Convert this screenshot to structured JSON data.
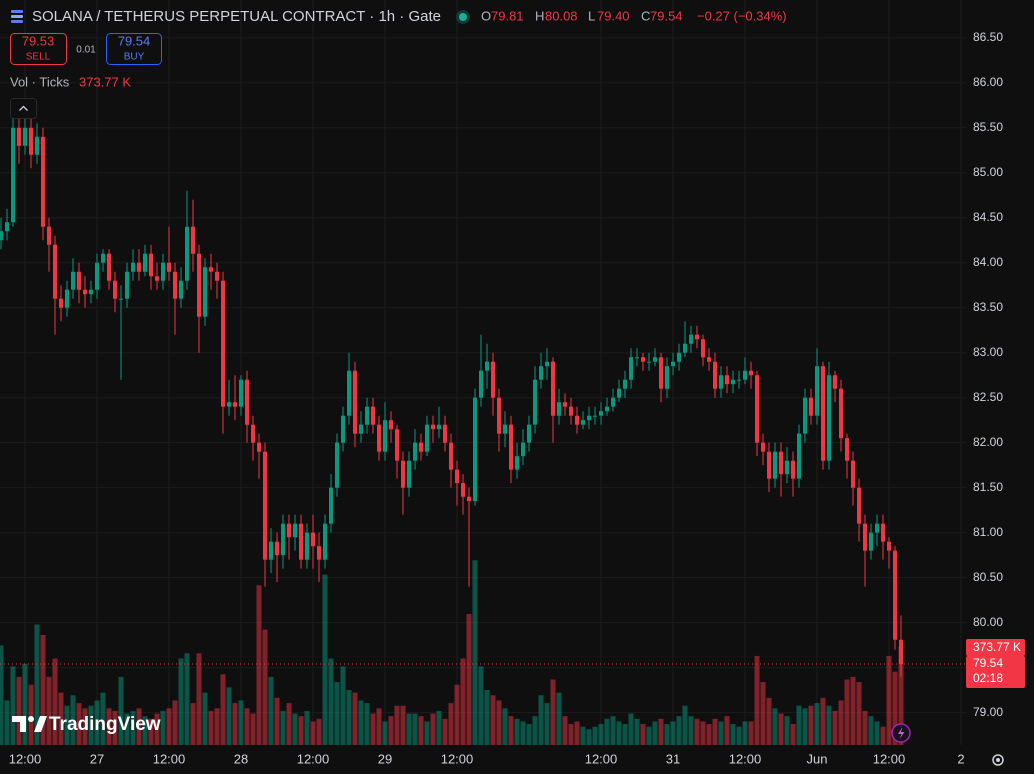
{
  "header": {
    "title": "SOLANA / TETHERUS PERPETUAL CONTRACT · 1h · Gate",
    "o_label": "O",
    "o": "79.81",
    "h_label": "H",
    "h": "80.08",
    "l_label": "L",
    "l": "79.40",
    "c_label": "C",
    "c": "79.54",
    "change": "−0.27 (−0.34%)"
  },
  "trade": {
    "sell_price": "79.53",
    "sell": "SELL",
    "spread": "0.01",
    "buy_price": "79.54",
    "buy": "BUY"
  },
  "indicator": {
    "name": "Vol · Ticks",
    "value": "373.77 K"
  },
  "price_tags": {
    "volume": "373.77 K",
    "countdown": "02:18"
  },
  "branding": "TradingView",
  "chart_data": {
    "type": "candlestick",
    "up_color": "#089981",
    "down_color": "#f23645",
    "grid": true,
    "xlim": [
      0,
      160
    ],
    "ylim": [
      78.64,
      86.92
    ],
    "xticks": [
      {
        "value": 4,
        "label": "12:00"
      },
      {
        "value": 16,
        "label": "27"
      },
      {
        "value": 28,
        "label": "12:00"
      },
      {
        "value": 40,
        "label": "28"
      },
      {
        "value": 52,
        "label": "12:00"
      },
      {
        "value": 64,
        "label": "29"
      },
      {
        "value": 76,
        "label": "12:00"
      },
      {
        "value": 100,
        "label": "12:00"
      },
      {
        "value": 112,
        "label": "31"
      },
      {
        "value": 124,
        "label": "12:00"
      },
      {
        "value": 136,
        "label": "Jun"
      },
      {
        "value": 148,
        "label": "12:00"
      },
      {
        "value": 160,
        "label": "2"
      }
    ],
    "yticks": [
      {
        "value": 79.0,
        "label": "79.00"
      },
      {
        "value": 79.5,
        "label": "79.50"
      },
      {
        "value": 80.0,
        "label": "80.00"
      },
      {
        "value": 80.5,
        "label": "80.50"
      },
      {
        "value": 81.0,
        "label": "81.00"
      },
      {
        "value": 81.5,
        "label": "81.50"
      },
      {
        "value": 82.0,
        "label": "82.00"
      },
      {
        "value": 82.5,
        "label": "82.50"
      },
      {
        "value": 83.0,
        "label": "83.00"
      },
      {
        "value": 83.5,
        "label": "83.50"
      },
      {
        "value": 84.0,
        "label": "84.00"
      },
      {
        "value": 84.5,
        "label": "84.50"
      },
      {
        "value": 85.0,
        "label": "85.00"
      },
      {
        "value": 85.5,
        "label": "85.50"
      },
      {
        "value": 86.0,
        "label": "86.00"
      },
      {
        "value": 86.5,
        "label": "86.50"
      }
    ],
    "open": [
      84.25,
      84.35,
      84.45,
      85.5,
      85.3,
      85.5,
      85.2,
      85.4,
      84.4,
      84.2,
      83.6,
      83.5,
      83.7,
      83.9,
      83.7,
      83.65,
      83.7,
      84.0,
      84.1,
      83.8,
      83.6,
      83.6,
      83.9,
      84.0,
      83.9,
      84.1,
      83.85,
      83.8,
      84.0,
      83.9,
      83.6,
      83.8,
      84.4,
      84.1,
      83.4,
      83.95,
      83.9,
      83.8,
      82.4,
      82.45,
      82.4,
      82.7,
      82.2,
      82.0,
      81.9,
      80.7,
      80.9,
      80.75,
      81.1,
      80.95,
      81.1,
      80.7,
      81.0,
      80.85,
      80.7,
      81.1,
      81.5,
      82.0,
      82.3,
      82.8,
      82.1,
      82.2,
      82.4,
      82.2,
      81.9,
      82.25,
      82.15,
      81.8,
      81.5,
      81.8,
      82.0,
      81.9,
      82.2,
      82.15,
      82.2,
      82.0,
      81.7,
      81.55,
      81.4,
      81.35,
      82.5,
      82.8,
      82.9,
      82.5,
      82.1,
      82.2,
      81.7,
      81.85,
      82.0,
      82.2,
      82.7,
      82.85,
      82.9,
      82.3,
      82.45,
      82.4,
      82.3,
      82.2,
      82.25,
      82.3,
      82.3,
      82.35,
      82.4,
      82.5,
      82.6,
      82.7,
      82.95,
      82.95,
      82.9,
      82.9,
      82.95,
      82.6,
      82.85,
      82.9,
      83.0,
      83.1,
      83.2,
      83.15,
      82.95,
      82.9,
      82.6,
      82.75,
      82.65,
      82.7,
      82.7,
      82.8,
      82.75,
      82.0,
      81.9,
      81.6,
      81.9,
      81.65,
      81.8,
      81.6,
      82.1,
      82.5,
      82.3,
      82.85,
      81.8,
      82.75,
      82.6,
      82.05,
      81.8,
      81.5,
      81.1,
      80.8,
      81.0,
      81.1,
      80.9,
      80.8,
      79.81
    ],
    "high": [
      84.5,
      84.6,
      85.65,
      85.6,
      85.6,
      85.75,
      85.55,
      85.5,
      84.5,
      84.3,
      83.75,
      83.8,
      84.05,
      84.0,
      83.85,
      83.8,
      84.1,
      84.15,
      84.15,
      83.9,
      83.75,
      84.0,
      84.15,
      84.15,
      84.2,
      84.2,
      84.0,
      84.1,
      84.4,
      84.0,
      83.95,
      84.8,
      84.7,
      84.2,
      84.05,
      84.1,
      84.0,
      83.9,
      82.7,
      82.75,
      82.75,
      82.8,
      82.3,
      82.1,
      82.0,
      81.05,
      81.0,
      81.2,
      81.2,
      81.2,
      81.2,
      81.1,
      81.2,
      81.0,
      81.2,
      81.65,
      82.1,
      82.4,
      83.0,
      82.9,
      82.35,
      82.5,
      82.5,
      82.3,
      82.45,
      82.35,
      82.2,
      81.9,
      81.9,
      82.15,
      82.1,
      82.3,
      82.3,
      82.4,
      82.3,
      82.1,
      81.8,
      81.65,
      81.5,
      82.6,
      83.2,
      83.1,
      83.0,
      82.6,
      82.35,
      82.3,
      82.0,
      82.15,
      82.3,
      82.85,
      83.0,
      83.05,
      82.95,
      82.6,
      82.55,
      82.5,
      82.4,
      82.35,
      82.4,
      82.4,
      82.45,
      82.5,
      82.6,
      82.7,
      82.8,
      83.05,
      83.05,
      83.0,
      83.0,
      83.05,
      83.0,
      82.95,
      83.0,
      83.1,
      83.35,
      83.3,
      83.3,
      83.2,
      83.05,
      83.0,
      82.85,
      82.85,
      82.8,
      82.8,
      82.95,
      82.9,
      82.8,
      82.1,
      82.0,
      82.0,
      82.0,
      81.95,
      81.9,
      82.2,
      82.6,
      82.6,
      83.05,
      82.9,
      82.9,
      82.8,
      82.7,
      82.1,
      81.9,
      81.6,
      81.2,
      81.1,
      81.2,
      81.2,
      80.95,
      80.85,
      80.08
    ],
    "low": [
      84.15,
      84.25,
      84.4,
      85.1,
      85.2,
      85.05,
      85.1,
      84.25,
      83.9,
      83.2,
      83.35,
      83.4,
      83.6,
      83.55,
      83.5,
      83.55,
      83.6,
      83.9,
      83.7,
      83.45,
      82.7,
      83.5,
      83.8,
      83.8,
      83.85,
      83.7,
      83.7,
      83.7,
      83.8,
      83.2,
      83.5,
      83.7,
      83.9,
      83.0,
      83.3,
      83.7,
      83.6,
      82.1,
      82.3,
      82.25,
      82.3,
      82.0,
      81.8,
      81.6,
      80.4,
      80.55,
      80.45,
      80.6,
      80.7,
      80.8,
      80.6,
      80.6,
      80.6,
      80.45,
      80.6,
      81.0,
      81.4,
      81.9,
      82.2,
      81.95,
      82.0,
      82.1,
      82.1,
      81.8,
      81.8,
      82.0,
      81.6,
      81.2,
      81.4,
      81.7,
      81.8,
      81.85,
      82.0,
      82.05,
      81.9,
      81.5,
      81.3,
      81.2,
      80.4,
      81.3,
      82.4,
      82.6,
      82.3,
      81.9,
      81.95,
      81.55,
      81.6,
      81.75,
      81.9,
      82.1,
      82.6,
      82.7,
      82.0,
      82.2,
      82.3,
      82.2,
      82.1,
      82.15,
      82.15,
      82.2,
      82.2,
      82.3,
      82.35,
      82.45,
      82.5,
      82.6,
      82.85,
      82.8,
      82.8,
      82.85,
      82.45,
      82.5,
      82.75,
      82.8,
      82.95,
      83.0,
      83.05,
      82.85,
      82.8,
      82.5,
      82.5,
      82.55,
      82.55,
      82.6,
      82.65,
      82.6,
      81.85,
      81.75,
      81.45,
      81.5,
      81.4,
      81.55,
      81.4,
      81.5,
      82.0,
      82.2,
      82.2,
      81.7,
      81.7,
      82.45,
      81.9,
      81.6,
      81.3,
      80.9,
      80.4,
      80.7,
      80.85,
      80.7,
      80.6,
      79.7,
      79.4
    ],
    "close": [
      84.35,
      84.45,
      85.5,
      85.3,
      85.5,
      85.2,
      85.4,
      84.4,
      84.2,
      83.6,
      83.5,
      83.7,
      83.9,
      83.7,
      83.65,
      83.7,
      84.0,
      84.1,
      83.8,
      83.6,
      83.6,
      83.9,
      84.0,
      83.9,
      84.1,
      83.85,
      83.8,
      84.0,
      83.9,
      83.6,
      83.8,
      84.4,
      84.1,
      83.4,
      83.95,
      83.9,
      83.8,
      82.4,
      82.45,
      82.4,
      82.7,
      82.2,
      82.0,
      81.9,
      80.7,
      80.9,
      80.75,
      81.1,
      80.95,
      81.1,
      80.7,
      81.0,
      80.85,
      80.7,
      81.1,
      81.5,
      82.0,
      82.3,
      82.8,
      82.1,
      82.2,
      82.4,
      82.2,
      81.9,
      82.25,
      82.15,
      81.8,
      81.5,
      81.8,
      82.0,
      81.9,
      82.2,
      82.15,
      82.2,
      82.0,
      81.7,
      81.55,
      81.4,
      81.35,
      82.5,
      82.8,
      82.9,
      82.5,
      82.1,
      82.2,
      81.7,
      81.85,
      82.0,
      82.2,
      82.7,
      82.85,
      82.9,
      82.3,
      82.45,
      82.4,
      82.3,
      82.2,
      82.25,
      82.3,
      82.3,
      82.35,
      82.4,
      82.5,
      82.6,
      82.7,
      82.95,
      82.95,
      82.9,
      82.9,
      82.95,
      82.6,
      82.85,
      82.9,
      83.0,
      83.1,
      83.2,
      83.15,
      82.95,
      82.9,
      82.6,
      82.75,
      82.65,
      82.7,
      82.7,
      82.8,
      82.75,
      82.0,
      81.9,
      81.6,
      81.9,
      81.65,
      81.8,
      81.6,
      82.1,
      82.5,
      82.3,
      82.85,
      81.8,
      82.75,
      82.6,
      82.05,
      81.8,
      81.5,
      81.1,
      80.8,
      81.0,
      81.1,
      80.9,
      80.8,
      79.81,
      79.54
    ],
    "volume": [
      380,
      170,
      300,
      260,
      310,
      230,
      460,
      420,
      260,
      330,
      200,
      150,
      190,
      160,
      140,
      150,
      170,
      200,
      140,
      130,
      260,
      120,
      130,
      140,
      110,
      100,
      120,
      130,
      140,
      170,
      330,
      350,
      160,
      350,
      200,
      130,
      140,
      270,
      220,
      160,
      170,
      140,
      120,
      610,
      440,
      260,
      180,
      130,
      160,
      120,
      110,
      130,
      90,
      100,
      650,
      330,
      240,
      300,
      210,
      200,
      170,
      160,
      120,
      140,
      90,
      110,
      150,
      150,
      120,
      120,
      110,
      90,
      120,
      130,
      100,
      160,
      230,
      330,
      500,
      705,
      300,
      210,
      190,
      170,
      140,
      110,
      100,
      90,
      80,
      110,
      190,
      160,
      250,
      200,
      110,
      80,
      90,
      70,
      60,
      70,
      80,
      100,
      110,
      90,
      80,
      120,
      100,
      80,
      70,
      90,
      100,
      80,
      90,
      110,
      150,
      110,
      100,
      90,
      80,
      100,
      90,
      110,
      80,
      70,
      90,
      90,
      340,
      240,
      180,
      140,
      120,
      110,
      80,
      150,
      140,
      150,
      160,
      180,
      150,
      130,
      170,
      250,
      260,
      240,
      130,
      110,
      90,
      70,
      340,
      280,
      373.77
    ]
  }
}
